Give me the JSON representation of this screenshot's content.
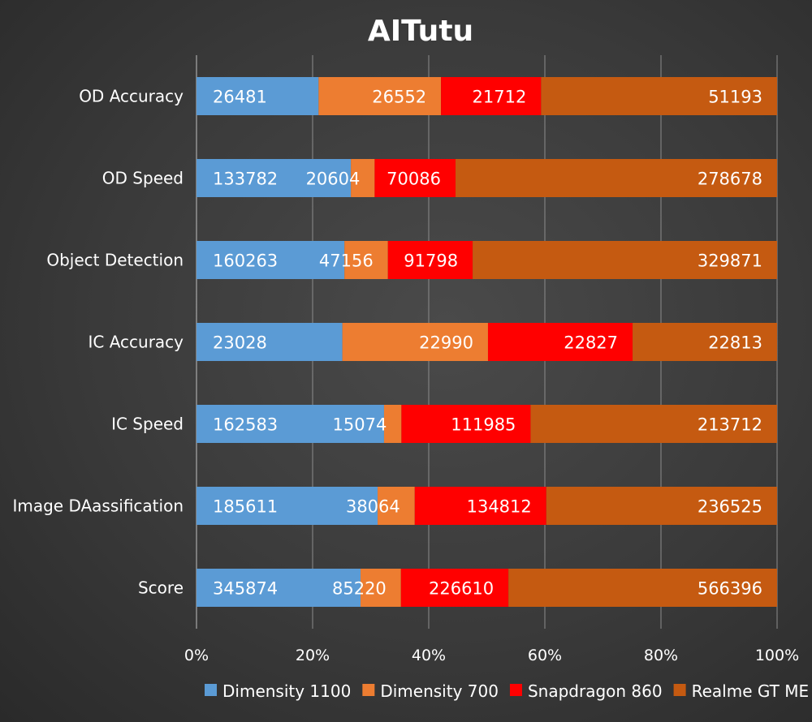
{
  "chart_data": {
    "type": "bar",
    "orientation": "horizontal",
    "stacked": "percent",
    "title": "AITutu",
    "categories": [
      "OD Accuracy",
      "OD Speed",
      "Object Detection",
      "IC Accuracy",
      "IC Speed",
      "Image DAassification",
      "Score"
    ],
    "series": [
      {
        "name": "Dimensity 1100",
        "color": "#5b9bd5",
        "values": [
          26481,
          133782,
          160263,
          23028,
          162583,
          185611,
          345874
        ]
      },
      {
        "name": "Dimensity 700",
        "color": "#ed7d31",
        "values": [
          26552,
          20604,
          47156,
          22990,
          15074,
          38064,
          85220
        ]
      },
      {
        "name": "Snapdragon 860",
        "color": "#ff0000",
        "values": [
          21712,
          70086,
          91798,
          22827,
          111985,
          134812,
          226610
        ]
      },
      {
        "name": "Realme GT ME",
        "color": "#c55a11",
        "values": [
          51193,
          278678,
          329871,
          22813,
          213712,
          236525,
          566396
        ]
      }
    ],
    "x_ticks": [
      "0%",
      "20%",
      "40%",
      "60%",
      "80%",
      "100%"
    ],
    "xlim": [
      0,
      100
    ],
    "grid": true,
    "legend": "bottom"
  }
}
